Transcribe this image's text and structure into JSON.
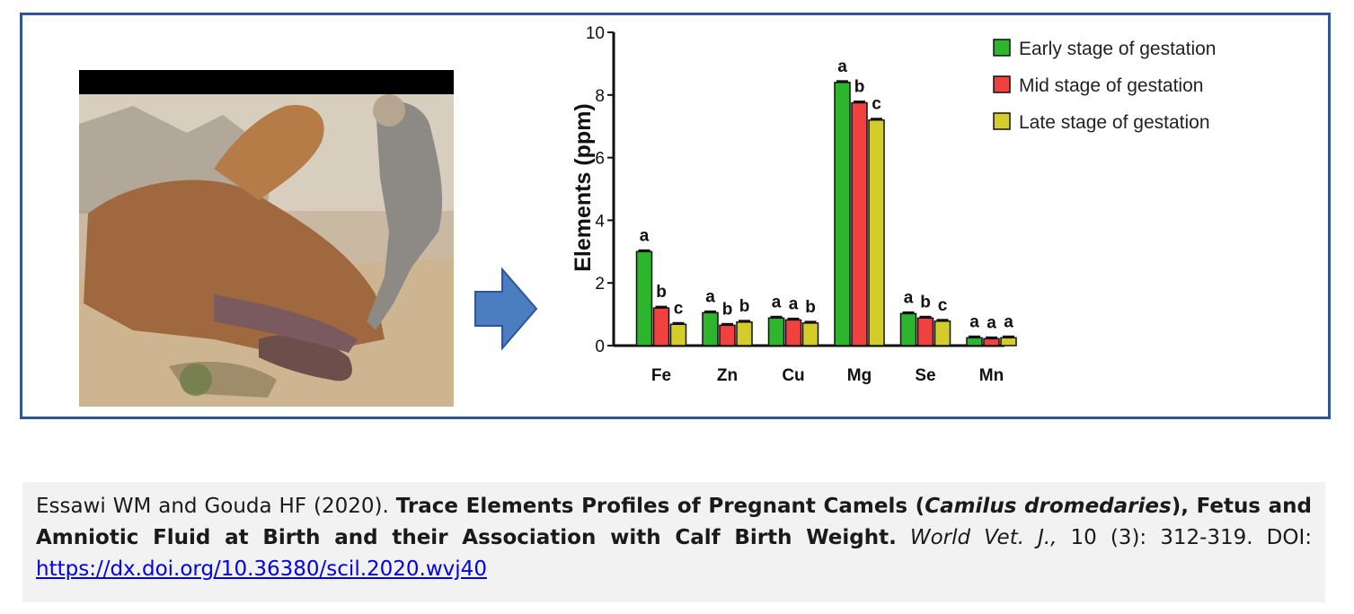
{
  "chart_data": {
    "type": "bar",
    "ylabel": "Elements (ppm)",
    "ylim": [
      0,
      10
    ],
    "yticks": [
      0,
      2,
      4,
      6,
      8,
      10
    ],
    "categories": [
      "Fe",
      "Zn",
      "Cu",
      "Mg",
      "Se",
      "Mn"
    ],
    "series": [
      {
        "name": "Early stage of gestation",
        "color": "#2db52d",
        "values": [
          3.0,
          1.05,
          0.88,
          8.4,
          1.02,
          0.25
        ],
        "labels": [
          "a",
          "a",
          "a",
          "a",
          "a",
          "a"
        ]
      },
      {
        "name": "Mid stage of gestation",
        "color": "#f04040",
        "values": [
          1.2,
          0.65,
          0.82,
          7.75,
          0.88,
          0.22
        ],
        "labels": [
          "b",
          "b",
          "a",
          "b",
          "b",
          "a"
        ]
      },
      {
        "name": "Late stage of gestation",
        "color": "#d4cc2a",
        "values": [
          0.68,
          0.75,
          0.72,
          7.2,
          0.78,
          0.25
        ],
        "labels": [
          "c",
          "b",
          "b",
          "c",
          "c",
          "a"
        ]
      }
    ],
    "grid": false,
    "legend": "top-right"
  },
  "caption": {
    "authors": "Essawi WM and Gouda HF (2020). ",
    "title_part1": "Trace Elements Profiles of Pregnant Camels (",
    "species": "Camilus dromedaries",
    "title_part2": "), Fetus and Amniotic Fluid at Birth and their Association with Calf Birth Weight.",
    "journal": "World Vet. J.,",
    "volume": " 10 (3): 312-319. DOI: ",
    "doi_url": "https://dx.doi.org/10.36380/scil.2020.wvj40"
  },
  "colors": {
    "frame": "#2f5597",
    "arrow": "#4a7ec0",
    "caption_bg": "#f2f2f2"
  },
  "icons": {
    "arrow": "right-arrow-icon"
  }
}
